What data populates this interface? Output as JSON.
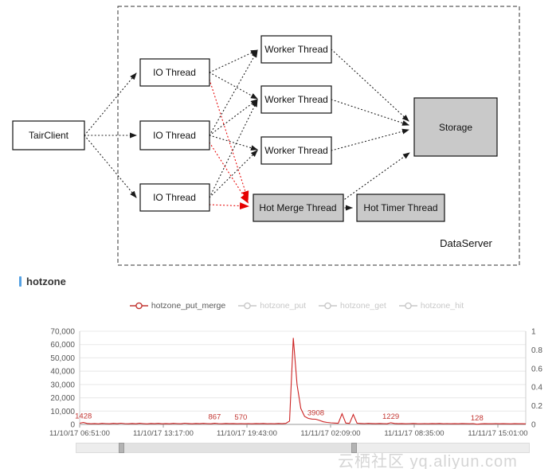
{
  "diagram": {
    "nodes": {
      "tair_client": "TairClient",
      "io_thread_1": "IO Thread",
      "io_thread_2": "IO Thread",
      "io_thread_3": "IO Thread",
      "worker_thread_1": "Worker Thread",
      "worker_thread_2": "Worker Thread",
      "worker_thread_3": "Worker Thread",
      "storage": "Storage",
      "hot_merge_thread": "Hot Merge Thread",
      "hot_timer_thread": "Hot Timer Thread"
    },
    "container_label": "DataServer",
    "colors": {
      "node_fill_white": "#ffffff",
      "node_fill_gray": "#c9c9c9",
      "line": "#1a1a1a",
      "hot_path": "#e60000"
    }
  },
  "section": {
    "title": "hotzone",
    "accent_color": "#55a1e3"
  },
  "chart": {
    "legend": [
      {
        "label": "hotzone_put_merge",
        "color": "#c23531",
        "selected": true
      },
      {
        "label": "hotzone_put",
        "color": "#c8c8c8",
        "selected": false
      },
      {
        "label": "hotzone_get",
        "color": "#c8c8c8",
        "selected": false
      },
      {
        "label": "hotzone_hit",
        "color": "#c8c8c8",
        "selected": false
      }
    ]
  },
  "chart_data": {
    "type": "line",
    "title": "",
    "legend_position": "top",
    "grid": true,
    "series": [
      {
        "name": "hotzone_put_merge",
        "color": "#cc2222",
        "values": [
          900,
          1428,
          700,
          500,
          650,
          400,
          800,
          600,
          500,
          750,
          550,
          900,
          600,
          450,
          700,
          500,
          850,
          600,
          400,
          700,
          550,
          800,
          500,
          650,
          450,
          750,
          600,
          500,
          900,
          650,
          500,
          700,
          550,
          800,
          600,
          450,
          867,
          600,
          500,
          700,
          550,
          650,
          500,
          570,
          450,
          600,
          500,
          650,
          550,
          700,
          500,
          600,
          450,
          700,
          550,
          800,
          2500,
          65000,
          30000,
          12000,
          6000,
          4500,
          4000,
          3908,
          3000,
          2000,
          1500,
          1200,
          1000,
          900,
          8000,
          1000,
          800,
          7500,
          900,
          700,
          600,
          800,
          650,
          550,
          700,
          600,
          500,
          1229,
          700,
          550,
          650,
          500,
          600,
          700,
          550,
          450,
          600,
          500,
          650,
          550,
          700,
          500,
          600,
          450,
          550,
          500,
          650,
          550,
          450,
          600,
          128,
          400,
          550,
          450,
          500,
          600,
          450,
          550,
          500,
          400,
          550,
          450,
          500,
          400
        ]
      }
    ],
    "x_ticks": [
      "11/10/17 06:51:00",
      "11/10/17 13:17:00",
      "11/10/17 19:43:00",
      "11/11/17 02:09:00",
      "11/11/17 08:35:00",
      "11/11/17 15:01:00"
    ],
    "y_left": {
      "min": 0,
      "max": 70000,
      "ticks": [
        "70,000",
        "60,000",
        "50,000",
        "40,000",
        "30,000",
        "20,000",
        "10,000",
        "0"
      ]
    },
    "y_right": {
      "min": 0,
      "max": 1,
      "ticks": [
        "1",
        "0.8",
        "0.6",
        "0.4",
        "0.2",
        "0"
      ]
    },
    "annotation_color": "#c23531",
    "annotations": [
      {
        "label": "1428",
        "index": 1
      },
      {
        "label": "867",
        "index": 36
      },
      {
        "label": "570",
        "index": 43
      },
      {
        "label": "3908",
        "index": 63
      },
      {
        "label": "1229",
        "index": 83
      },
      {
        "label": "128",
        "index": 106
      }
    ]
  },
  "watermark": "云栖社区 yq.aliyun.com"
}
